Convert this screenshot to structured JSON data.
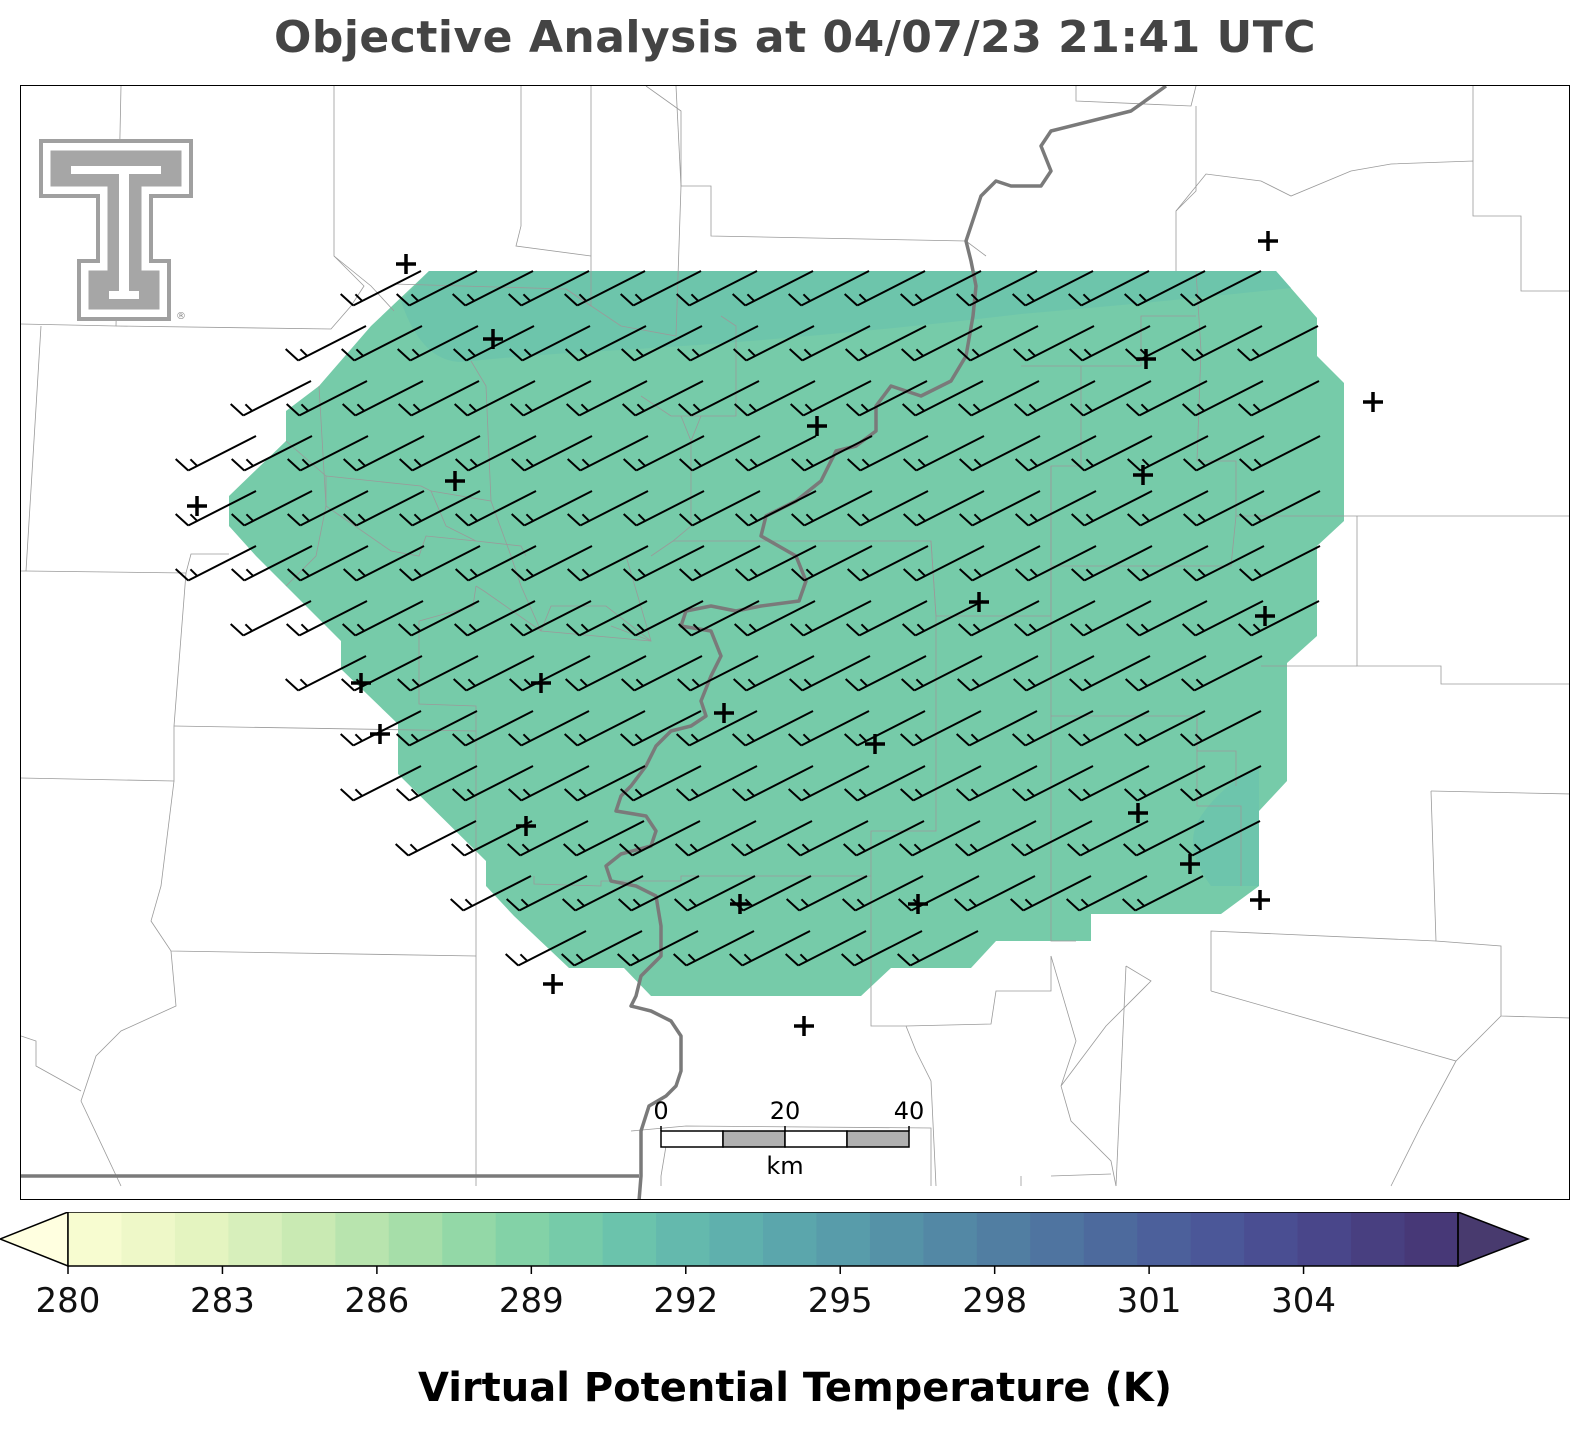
{
  "title": "Objective Analysis at 04/07/23 21:41 UTC",
  "colorbar": {
    "label": "Virtual Potential Temperature (K)",
    "ticks": [
      280,
      283,
      286,
      289,
      292,
      295,
      298,
      301,
      304
    ],
    "min": 280,
    "max": 307,
    "step": 1,
    "extend": "both",
    "colors": [
      "#f7fcd0",
      "#eef8c8",
      "#e4f4c0",
      "#d7efbb",
      "#c9eab3",
      "#b8e4ae",
      "#a6dea9",
      "#93d8a7",
      "#83d2a7",
      "#76cba9",
      "#6bc3ac",
      "#64b9ad",
      "#5fb0ad",
      "#5ba6ac",
      "#589caa",
      "#5592a7",
      "#5388a5",
      "#517ea2",
      "#4f74a0",
      "#4d6a9d",
      "#4c609b",
      "#4b5798",
      "#4a4e92",
      "#49468a",
      "#483f80",
      "#473877"
    ]
  },
  "scale_bar": {
    "labels": [
      "0",
      "20",
      "40"
    ],
    "unit": "km"
  },
  "analysis": {
    "field_value_K": 289.2,
    "north_band_value_K": 290.1,
    "southeast_patch_value_K": 290.0
  },
  "wind": {
    "direction_deg": 243,
    "speed_kt": 15
  },
  "logo": {
    "name": "Texas Tech double-T",
    "text": "®"
  },
  "colors": {
    "title": "#444444",
    "border": "#cccccc",
    "river": "#7a7a7a",
    "barb": "#000000"
  }
}
